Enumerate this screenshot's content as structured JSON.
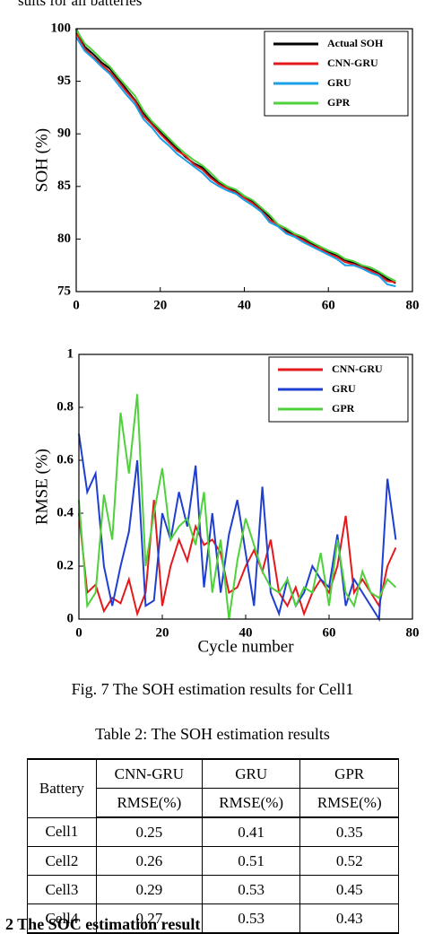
{
  "top_text": "sults for all batteries",
  "chart_data": [
    {
      "type": "line",
      "xlabel": "Cycle number",
      "ylabel": "SOH (%)",
      "x": [
        0,
        2,
        4,
        6,
        8,
        10,
        12,
        14,
        16,
        18,
        20,
        22,
        24,
        26,
        28,
        30,
        32,
        34,
        36,
        38,
        40,
        42,
        44,
        46,
        48,
        50,
        52,
        54,
        56,
        58,
        60,
        62,
        64,
        66,
        68,
        70,
        72,
        74,
        76
      ],
      "xlim": [
        0,
        80
      ],
      "xticks": [
        0,
        20,
        40,
        60,
        80
      ],
      "ylim": [
        75,
        100
      ],
      "yticks": [
        75,
        80,
        85,
        90,
        95,
        100
      ],
      "legend": "upper right",
      "series": [
        {
          "name": "Actual SOH",
          "color": "#000000",
          "values": [
            100,
            98.3,
            97.6,
            96.8,
            96.2,
            95.2,
            94.2,
            93.2,
            92.0,
            91.0,
            90.2,
            89.4,
            88.6,
            87.8,
            87.2,
            86.8,
            86.0,
            85.3,
            84.9,
            84.6,
            84.0,
            83.5,
            82.9,
            82.1,
            81.3,
            80.8,
            80.4,
            80.0,
            79.6,
            79.2,
            78.8,
            78.4,
            78.0,
            77.7,
            77.4,
            77.1,
            76.8,
            76.2,
            75.8
          ]
        },
        {
          "name": "CNN-GRU",
          "color": "#e3191c",
          "values": [
            99.6,
            98.1,
            97.3,
            96.6,
            95.9,
            95.0,
            94.0,
            93.1,
            91.7,
            90.9,
            90.0,
            89.2,
            88.4,
            87.9,
            87.1,
            86.6,
            85.8,
            85.2,
            84.8,
            84.4,
            83.9,
            83.4,
            82.7,
            81.8,
            81.4,
            80.6,
            80.3,
            79.9,
            79.4,
            79.1,
            78.6,
            78.3,
            77.8,
            77.6,
            77.3,
            77.0,
            76.6,
            76.0,
            75.9
          ]
        },
        {
          "name": "GRU",
          "color": "#1aa0e6",
          "values": [
            99.2,
            97.9,
            97.2,
            96.4,
            95.7,
            94.7,
            93.7,
            92.8,
            91.4,
            90.6,
            89.6,
            88.9,
            88.1,
            87.5,
            86.9,
            86.3,
            85.5,
            85.0,
            84.6,
            84.3,
            83.7,
            83.2,
            82.6,
            81.6,
            81.2,
            80.5,
            80.2,
            79.7,
            79.3,
            78.9,
            78.5,
            78.1,
            77.5,
            77.5,
            77.2,
            76.8,
            76.5,
            75.7,
            75.5
          ]
        },
        {
          "name": "GPR",
          "color": "#4fd13c",
          "values": [
            99.9,
            98.6,
            97.9,
            97.1,
            96.4,
            95.4,
            94.5,
            93.6,
            92.2,
            91.2,
            90.4,
            89.6,
            88.8,
            88.1,
            87.5,
            87.0,
            86.3,
            85.5,
            85.0,
            84.7,
            84.1,
            83.7,
            83.0,
            82.3,
            81.4,
            81.0,
            80.5,
            80.2,
            79.7,
            79.3,
            78.9,
            78.6,
            78.1,
            77.9,
            77.5,
            77.3,
            76.9,
            76.4,
            76.0
          ]
        }
      ]
    },
    {
      "type": "line",
      "xlabel": "Cycle number",
      "ylabel": "RMSE (%)",
      "x": [
        0,
        2,
        4,
        6,
        8,
        10,
        12,
        14,
        16,
        18,
        20,
        22,
        24,
        26,
        28,
        30,
        32,
        34,
        36,
        38,
        40,
        42,
        44,
        46,
        48,
        50,
        52,
        54,
        56,
        58,
        60,
        62,
        64,
        66,
        68,
        70,
        72,
        74,
        76
      ],
      "xlim": [
        0,
        80
      ],
      "xticks": [
        0,
        20,
        40,
        60,
        80
      ],
      "ylim": [
        0,
        1
      ],
      "yticks": [
        0,
        0.2,
        0.4,
        0.6,
        0.8,
        1
      ],
      "legend": "upper right",
      "series": [
        {
          "name": "CNN-GRU",
          "color": "#e3191c",
          "values": [
            0.4,
            0.1,
            0.13,
            0.03,
            0.08,
            0.06,
            0.15,
            0.02,
            0.1,
            0.45,
            0.05,
            0.2,
            0.3,
            0.22,
            0.35,
            0.28,
            0.3,
            0.25,
            0.1,
            0.12,
            0.2,
            0.26,
            0.18,
            0.3,
            0.1,
            0.05,
            0.12,
            0.02,
            0.1,
            0.15,
            0.1,
            0.2,
            0.39,
            0.1,
            0.15,
            0.1,
            0.05,
            0.2,
            0.27
          ]
        },
        {
          "name": "GRU",
          "color": "#1f3fd0",
          "values": [
            0.7,
            0.48,
            0.55,
            0.2,
            0.05,
            0.2,
            0.33,
            0.6,
            0.05,
            0.07,
            0.4,
            0.3,
            0.48,
            0.35,
            0.58,
            0.12,
            0.4,
            0.1,
            0.32,
            0.45,
            0.25,
            0.05,
            0.5,
            0.1,
            0.02,
            0.15,
            0.05,
            0.1,
            0.2,
            0.15,
            0.12,
            0.32,
            0.05,
            0.15,
            0.1,
            0.05,
            0.0,
            0.53,
            0.3
          ]
        },
        {
          "name": "GPR",
          "color": "#4fd13c",
          "values": [
            0.45,
            0.05,
            0.1,
            0.47,
            0.3,
            0.78,
            0.55,
            0.85,
            0.2,
            0.4,
            0.57,
            0.3,
            0.35,
            0.38,
            0.28,
            0.48,
            0.1,
            0.3,
            0.0,
            0.22,
            0.38,
            0.28,
            0.18,
            0.12,
            0.1,
            0.15,
            0.05,
            0.12,
            0.1,
            0.25,
            0.05,
            0.3,
            0.1,
            0.05,
            0.18,
            0.1,
            0.08,
            0.15,
            0.12
          ]
        }
      ]
    }
  ],
  "caption": "Fig. 7 The SOH estimation results for Cell1",
  "table": {
    "title": "Table 2: The SOH estimation results",
    "header": [
      "Battery",
      "CNN-GRU",
      "GRU",
      "GPR"
    ],
    "subheader": [
      "RMSE(%)",
      "RMSE(%)",
      "RMSE(%)"
    ],
    "rows": [
      [
        "Cell1",
        "0.25",
        "0.41",
        "0.35"
      ],
      [
        "Cell2",
        "0.26",
        "0.51",
        "0.52"
      ],
      [
        "Cell3",
        "0.29",
        "0.53",
        "0.45"
      ],
      [
        "Cell4",
        "0.27",
        "0.53",
        "0.43"
      ]
    ]
  },
  "section": "2   The SOC estimation result"
}
